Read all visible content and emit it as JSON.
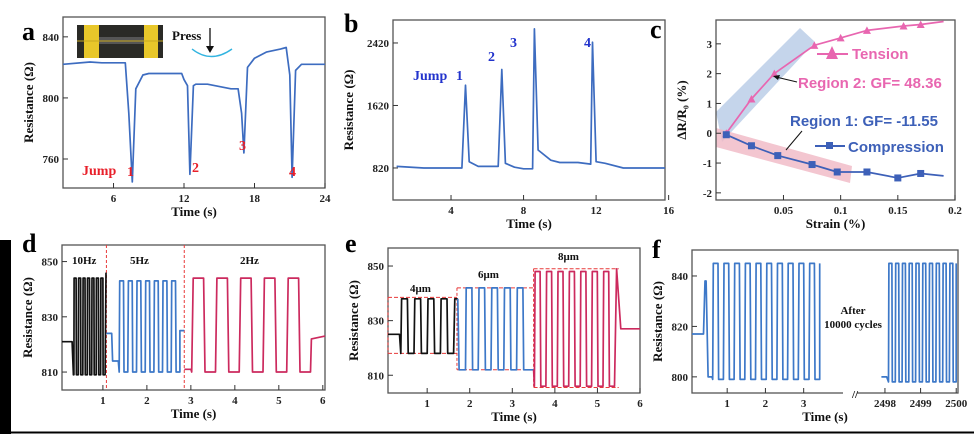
{
  "chart_data": [
    {
      "panel": "a",
      "type": "line",
      "xlabel": "Time (s)",
      "ylabel": "Resistance (Ω)",
      "xlim": [
        1.7,
        24
      ],
      "ylim": [
        741,
        853
      ],
      "xticks": [
        6,
        12,
        18,
        24
      ],
      "yticks": [
        760,
        800,
        840
      ],
      "series": [
        {
          "color": "#3d6cc0",
          "points": [
            [
              1.7,
              822
            ],
            [
              4,
              823.5
            ],
            [
              5,
              823
            ],
            [
              7,
              823
            ],
            [
              7.3,
              790
            ],
            [
              7.6,
              745
            ],
            [
              7.9,
              806
            ],
            [
              8.5,
              815
            ],
            [
              9,
              816
            ],
            [
              11.8,
              816
            ],
            [
              12,
              812
            ],
            [
              12.3,
              808
            ],
            [
              12.5,
              750
            ],
            [
              12.8,
              808
            ],
            [
              13,
              809
            ],
            [
              14,
              809
            ],
            [
              16,
              806
            ],
            [
              16.6,
              806
            ],
            [
              16.9,
              790
            ],
            [
              17.1,
              764
            ],
            [
              17.4,
              820
            ],
            [
              18,
              826
            ],
            [
              19,
              830
            ],
            [
              20.2,
              832
            ],
            [
              20.7,
              833
            ],
            [
              21,
              815
            ],
            [
              21.2,
              748
            ],
            [
              21.5,
              818
            ],
            [
              22,
              822
            ],
            [
              24,
              822
            ]
          ]
        }
      ],
      "annotations": {
        "press": "Press",
        "jump": "Jump",
        "n1": "1",
        "n2": "2",
        "n3": "3",
        "n4": "4"
      },
      "annotation_color": "#e8202a"
    },
    {
      "panel": "b",
      "type": "line",
      "xlabel": "Time (s)",
      "ylabel": "Resistance (Ω)",
      "xlim": [
        0.8,
        15.8
      ],
      "ylim": [
        410,
        2714
      ],
      "xticks": [
        4,
        8,
        12,
        16
      ],
      "yticks": [
        820,
        1620,
        2420
      ],
      "series": [
        {
          "color": "#3d6cc0",
          "points": [
            [
              1,
              840
            ],
            [
              2.5,
              820
            ],
            [
              4.6,
              820
            ],
            [
              4.8,
              1880
            ],
            [
              5,
              900
            ],
            [
              5.5,
              840
            ],
            [
              6.6,
              840
            ],
            [
              6.8,
              2080
            ],
            [
              7,
              880
            ],
            [
              7.5,
              830
            ],
            [
              8,
              810
            ],
            [
              8.5,
              810
            ],
            [
              8.6,
              2600
            ],
            [
              8.8,
              1050
            ],
            [
              9.5,
              920
            ],
            [
              10,
              890
            ],
            [
              11,
              890
            ],
            [
              11.7,
              870
            ],
            [
              11.8,
              2430
            ],
            [
              12,
              900
            ],
            [
              12.5,
              880
            ],
            [
              13.5,
              820
            ],
            [
              15.8,
              820
            ]
          ]
        }
      ],
      "annotations": {
        "jump": "Jump",
        "n1": "1",
        "n2": "2",
        "n3": "3",
        "n4": "4"
      },
      "annotation_color": "#2233cc"
    },
    {
      "panel": "c",
      "type": "line",
      "xlabel": "Strain (%)",
      "ylabel": "ΔR/R₀ (%)",
      "xlim": [
        -0.009,
        0.2
      ],
      "ylim": [
        -2.24,
        3.8
      ],
      "xticks": [
        0.05,
        0.1,
        0.15,
        0.2
      ],
      "yticks": [
        -2,
        -1,
        0,
        1,
        2,
        3
      ],
      "series": [
        {
          "name": "Tension",
          "color": "#e866b0",
          "marker": "triangle",
          "points": [
            [
              0,
              0
            ],
            [
              0.022,
              1.15
            ],
            [
              0.042,
              2.0
            ],
            [
              0.077,
              2.95
            ],
            [
              0.1,
              3.2
            ],
            [
              0.123,
              3.45
            ],
            [
              0.155,
              3.6
            ],
            [
              0.17,
              3.65
            ],
            [
              0.19,
              3.75
            ]
          ]
        },
        {
          "name": "Compression",
          "color": "#3d60b8",
          "marker": "square",
          "points": [
            [
              0,
              -0.05
            ],
            [
              0.022,
              -0.42
            ],
            [
              0.045,
              -0.75
            ],
            [
              0.075,
              -1.05
            ],
            [
              0.097,
              -1.3
            ],
            [
              0.123,
              -1.3
            ],
            [
              0.15,
              -1.5
            ],
            [
              0.17,
              -1.35
            ],
            [
              0.19,
              -1.43
            ]
          ]
        }
      ],
      "annotations": {
        "region2": "Region 2: GF= 48.36",
        "region1": "Region 1: GF= -11.55"
      },
      "legend": "right"
    },
    {
      "panel": "d",
      "type": "line",
      "xlabel": "Time (s)",
      "ylabel": "Resistance (Ω)",
      "xlim": [
        0.07,
        6.05
      ],
      "ylim": [
        803.5,
        856
      ],
      "xticks": [
        1,
        2,
        3,
        4,
        5,
        6
      ],
      "yticks": [
        810,
        830,
        850
      ],
      "series": [
        {
          "color": "#111111",
          "pre": [
            [
              0.07,
              821
            ],
            [
              0.3,
              821
            ],
            [
              0.33,
              809
            ]
          ],
          "wave": {
            "start": 0.34,
            "end": 1.05,
            "cycles": 7,
            "high": 844,
            "low": 809
          },
          "post": [
            [
              1.07,
              846
            ]
          ]
        },
        {
          "color": "#3d78c8",
          "pre": [
            [
              1.08,
              824
            ],
            [
              1.2,
              824
            ],
            [
              1.22,
              814
            ],
            [
              1.35,
              814
            ]
          ],
          "wave": {
            "start": 1.37,
            "end": 2.75,
            "cycles": 7,
            "high": 843,
            "low": 810
          },
          "post": [
            [
              2.75,
              825
            ],
            [
              2.85,
              825
            ]
          ]
        },
        {
          "color": "#cc2a5e",
          "pre": [
            [
              2.85,
              811
            ],
            [
              3.0,
              811
            ]
          ],
          "wave": {
            "start": 3.02,
            "end": 5.72,
            "cycles": 5,
            "high": 844,
            "low": 810
          },
          "post": [
            [
              5.74,
              822
            ],
            [
              6.05,
              823
            ]
          ]
        }
      ],
      "dividers": [
        1.08,
        2.85
      ],
      "annotations": {
        "f10": "10Hz",
        "f5": "5Hz",
        "f2": "2Hz"
      }
    },
    {
      "panel": "e",
      "type": "line",
      "xlabel": "Time (s)",
      "ylabel": "Resistance (Ω)",
      "xlim": [
        0.08,
        6.0
      ],
      "ylim": [
        803.5,
        856.6
      ],
      "xticks": [
        1,
        2,
        3,
        4,
        5,
        6
      ],
      "yticks": [
        810,
        830,
        850
      ],
      "series": [
        {
          "color": "#111111",
          "pre": [
            [
              0.08,
              825
            ],
            [
              0.35,
              825
            ]
          ],
          "wave": {
            "start": 0.38,
            "end": 1.62,
            "cycles": 4,
            "high": 838,
            "low": 818
          },
          "post": [
            [
              1.65,
              838
            ],
            [
              1.72,
              838
            ]
          ]
        },
        {
          "color": "#3d78c8",
          "pre": [
            [
              1.72,
              838
            ],
            [
              1.75,
              812
            ],
            [
              1.88,
              812
            ]
          ],
          "wave": {
            "start": 1.9,
            "end": 3.4,
            "cycles": 5,
            "high": 842,
            "low": 812
          },
          "post": [
            [
              3.5,
              812
            ]
          ]
        },
        {
          "color": "#cc2a5e",
          "pre": [
            [
              3.5,
              812
            ]
          ],
          "wave": {
            "start": 3.52,
            "end": 5.4,
            "cycles": 7,
            "high": 848,
            "low": 806
          },
          "post": [
            [
              5.45,
              849
            ],
            [
              5.55,
              827
            ],
            [
              6.0,
              827
            ]
          ]
        }
      ],
      "bounds": [
        [
          0.08,
          1.7,
          838.5,
          818
        ],
        [
          1.7,
          3.5,
          842,
          812
        ],
        [
          3.5,
          5.5,
          849,
          805.5
        ]
      ],
      "annotations": {
        "w4": "4μm",
        "w6": "6μm",
        "w8": "8μm"
      }
    },
    {
      "panel": "f",
      "type": "line",
      "xlabel": "Time (s)",
      "ylabel": "Resistance (Ω)",
      "xlim": [
        0.08,
        3.95
      ],
      "xlim_after_break": [
        2497.3,
        2500.05
      ],
      "ylim": [
        793.6,
        850.3
      ],
      "xticks": [
        1,
        2,
        3
      ],
      "xticks_after_break": [
        2498,
        2499,
        2500
      ],
      "yticks": [
        800,
        820,
        840
      ],
      "series": [
        {
          "color": "#3d78c8",
          "segment": 0,
          "pre": [
            [
              0.08,
              817
            ],
            [
              0.38,
              817
            ],
            [
              0.42,
              838
            ],
            [
              0.45,
              838
            ],
            [
              0.5,
              800
            ],
            [
              0.6,
              800
            ]
          ],
          "wave": {
            "start": 0.62,
            "end": 3.42,
            "cycles": 10,
            "high": 845,
            "low": 799
          },
          "post": [
            [
              3.42,
              845
            ]
          ]
        },
        {
          "color": "#3d78c8",
          "segment": 1,
          "pre": [
            [
              2497.9,
              800
            ],
            [
              2498.05,
              800
            ]
          ],
          "wave": {
            "start": 2498.1,
            "end": 2500.0,
            "cycles": 10,
            "high": 845,
            "low": 798
          },
          "post": [
            [
              2500,
              845
            ]
          ]
        }
      ],
      "annotations": {
        "after": "After",
        "cycles": "10000 cycles",
        "break": "//"
      }
    }
  ],
  "panel_labels": {
    "a": "a",
    "b": "b",
    "c": "c",
    "d": "d",
    "e": "e",
    "f": "f"
  }
}
